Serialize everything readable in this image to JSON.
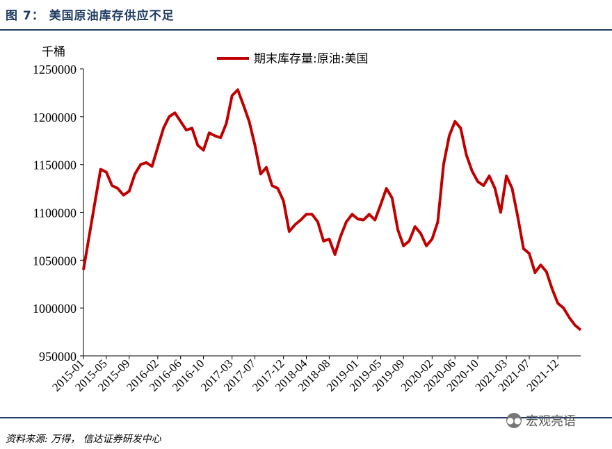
{
  "header": {
    "title": "图 7：  美国原油库存供应不足"
  },
  "footer": {
    "source": "资料来源: 万得，  信达证券研发中心",
    "watermark": "宏观亮语",
    "watermark_icon": "wechat-icon"
  },
  "colors": {
    "line": "#c00000",
    "rule": "#1f3b63"
  },
  "chart_data": {
    "type": "line",
    "title": "",
    "unit_label": "千桶",
    "legend": "期末库存量:原油:美国",
    "legend_position": "top-center",
    "grid": false,
    "ylim": [
      950000,
      1250000
    ],
    "yticks": [
      950000,
      1000000,
      1050000,
      1100000,
      1150000,
      1200000,
      1250000
    ],
    "ytick_labels": [
      "950000",
      "1000000",
      "1050000",
      "1100000",
      "1150000",
      "1200000",
      "1250000"
    ],
    "xlim": [
      "2015-01",
      "2022-04"
    ],
    "xtick_labels": [
      "2015-01",
      "2015-05",
      "2015-09",
      "2016-02",
      "2016-06",
      "2016-10",
      "2017-03",
      "2017-07",
      "2017-12",
      "2018-04",
      "2018-08",
      "2019-01",
      "2019-05",
      "2019-09",
      "2020-02",
      "2020-06",
      "2020-10",
      "2021-03",
      "2021-07",
      "2021-12"
    ],
    "series": [
      {
        "name": "期末库存量:原油:美国",
        "x": [
          "2015-01",
          "2015-02",
          "2015-03",
          "2015-04",
          "2015-05",
          "2015-06",
          "2015-07",
          "2015-08",
          "2015-09",
          "2015-10",
          "2015-11",
          "2015-12",
          "2016-01",
          "2016-02",
          "2016-03",
          "2016-04",
          "2016-05",
          "2016-06",
          "2016-07",
          "2016-08",
          "2016-09",
          "2016-10",
          "2016-11",
          "2016-12",
          "2017-01",
          "2017-02",
          "2017-03",
          "2017-04",
          "2017-05",
          "2017-06",
          "2017-07",
          "2017-08",
          "2017-09",
          "2017-10",
          "2017-11",
          "2017-12",
          "2018-01",
          "2018-02",
          "2018-03",
          "2018-04",
          "2018-05",
          "2018-06",
          "2018-07",
          "2018-08",
          "2018-09",
          "2018-10",
          "2018-11",
          "2018-12",
          "2019-01",
          "2019-02",
          "2019-03",
          "2019-04",
          "2019-05",
          "2019-06",
          "2019-07",
          "2019-08",
          "2019-09",
          "2019-10",
          "2019-11",
          "2019-12",
          "2020-01",
          "2020-02",
          "2020-03",
          "2020-04",
          "2020-05",
          "2020-06",
          "2020-07",
          "2020-08",
          "2020-09",
          "2020-10",
          "2020-11",
          "2020-12",
          "2021-01",
          "2021-02",
          "2021-03",
          "2021-04",
          "2021-05",
          "2021-06",
          "2021-07",
          "2021-08",
          "2021-09",
          "2021-10",
          "2021-11",
          "2021-12",
          "2022-01",
          "2022-02",
          "2022-03",
          "2022-04"
        ],
        "values": [
          1040000,
          1075000,
          1110000,
          1145000,
          1142000,
          1128000,
          1125000,
          1118000,
          1122000,
          1140000,
          1150000,
          1152000,
          1148000,
          1168000,
          1188000,
          1200000,
          1204000,
          1195000,
          1186000,
          1188000,
          1170000,
          1165000,
          1183000,
          1180000,
          1178000,
          1193000,
          1222000,
          1228000,
          1212000,
          1195000,
          1170000,
          1140000,
          1147000,
          1128000,
          1125000,
          1112000,
          1080000,
          1087000,
          1092000,
          1098000,
          1098000,
          1090000,
          1070000,
          1072000,
          1056000,
          1075000,
          1090000,
          1098000,
          1093000,
          1092000,
          1098000,
          1092000,
          1108000,
          1125000,
          1115000,
          1082000,
          1065000,
          1070000,
          1085000,
          1078000,
          1065000,
          1072000,
          1090000,
          1150000,
          1180000,
          1195000,
          1188000,
          1160000,
          1143000,
          1132000,
          1128000,
          1138000,
          1125000,
          1100000,
          1138000,
          1125000,
          1095000,
          1062000,
          1057000,
          1037000,
          1045000,
          1038000,
          1020000,
          1005000,
          1000000,
          990000,
          982000,
          977000
        ]
      }
    ]
  }
}
